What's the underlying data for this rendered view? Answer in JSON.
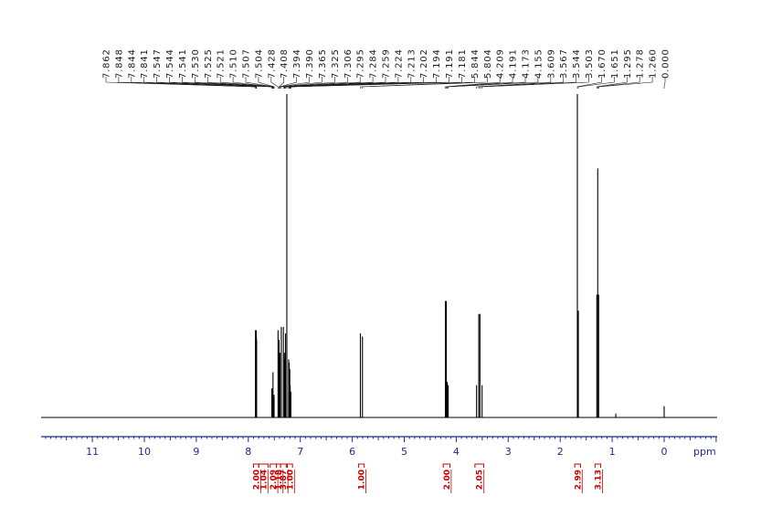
{
  "chart_data": {
    "type": "line",
    "title": "",
    "xlabel": "ppm",
    "ylabel": "",
    "xlim": [
      12.0,
      -1.0
    ],
    "reversed_x": true,
    "x_ticks": [
      "11",
      "10",
      "9",
      "8",
      "7",
      "6",
      "5",
      "4",
      "3",
      "2",
      "1",
      "0"
    ],
    "grid": false,
    "colors": {
      "spectrum": "#000000",
      "axis": "#1f2a99",
      "integral": "#cc0000",
      "peak_label": "#1a1a1a"
    },
    "peak_labels": [
      "7.862",
      "7.848",
      "7.844",
      "7.841",
      "7.547",
      "7.544",
      "7.541",
      "7.530",
      "7.525",
      "7.521",
      "7.510",
      "7.507",
      "7.504",
      "7.428",
      "7.408",
      "7.394",
      "7.390",
      "7.365",
      "7.325",
      "7.306",
      "7.295",
      "7.284",
      "7.259",
      "7.224",
      "7.213",
      "7.202",
      "7.194",
      "7.191",
      "7.181",
      "5.844",
      "5.804",
      "4.209",
      "4.191",
      "4.173",
      "4.155",
      "3.609",
      "3.567",
      "3.544",
      "3.503",
      "1.670",
      "1.651",
      "1.295",
      "1.278",
      "1.260",
      "0.000"
    ],
    "peaks": [
      {
        "x": 7.862,
        "h": 0.27
      },
      {
        "x": 7.848,
        "h": 0.27
      },
      {
        "x": 7.844,
        "h": 0.25
      },
      {
        "x": 7.841,
        "h": 0.24
      },
      {
        "x": 7.547,
        "h": 0.09
      },
      {
        "x": 7.541,
        "h": 0.09
      },
      {
        "x": 7.525,
        "h": 0.14
      },
      {
        "x": 7.51,
        "h": 0.06
      },
      {
        "x": 7.504,
        "h": 0.07
      },
      {
        "x": 7.428,
        "h": 0.27
      },
      {
        "x": 7.408,
        "h": 0.24
      },
      {
        "x": 7.394,
        "h": 0.18
      },
      {
        "x": 7.39,
        "h": 0.2
      },
      {
        "x": 7.365,
        "h": 0.28
      },
      {
        "x": 7.325,
        "h": 0.28
      },
      {
        "x": 7.306,
        "h": 0.2
      },
      {
        "x": 7.295,
        "h": 0.18
      },
      {
        "x": 7.284,
        "h": 0.26
      },
      {
        "x": 7.259,
        "h": 1.0
      },
      {
        "x": 7.224,
        "h": 0.18
      },
      {
        "x": 7.213,
        "h": 0.17
      },
      {
        "x": 7.202,
        "h": 0.15
      },
      {
        "x": 7.194,
        "h": 0.1
      },
      {
        "x": 7.181,
        "h": 0.08
      },
      {
        "x": 5.844,
        "h": 0.26
      },
      {
        "x": 5.804,
        "h": 0.25
      },
      {
        "x": 4.209,
        "h": 0.36
      },
      {
        "x": 4.191,
        "h": 0.36
      },
      {
        "x": 4.173,
        "h": 0.11
      },
      {
        "x": 4.155,
        "h": 0.1
      },
      {
        "x": 3.609,
        "h": 0.1
      },
      {
        "x": 3.567,
        "h": 0.32
      },
      {
        "x": 3.544,
        "h": 0.32
      },
      {
        "x": 3.503,
        "h": 0.1
      },
      {
        "x": 1.67,
        "h": 1.0
      },
      {
        "x": 1.651,
        "h": 0.33
      },
      {
        "x": 1.295,
        "h": 0.38
      },
      {
        "x": 1.278,
        "h": 0.77
      },
      {
        "x": 1.26,
        "h": 0.38
      },
      {
        "x": 0.93,
        "h": 0.012
      },
      {
        "x": 0.0,
        "h": 0.035
      }
    ],
    "integrals": [
      {
        "from": 7.9,
        "to": 7.8,
        "value": "2.00"
      },
      {
        "from": 7.8,
        "to": 7.62,
        "value": "1.04"
      },
      {
        "from": 7.58,
        "to": 7.46,
        "value": "2.09"
      },
      {
        "from": 7.46,
        "to": 7.38,
        "value": "1.18"
      },
      {
        "from": 7.38,
        "to": 7.27,
        "value": "3.87"
      },
      {
        "from": 7.25,
        "to": 7.15,
        "value": "1.00"
      },
      {
        "from": 5.88,
        "to": 5.77,
        "value": "1.00"
      },
      {
        "from": 4.25,
        "to": 4.12,
        "value": "2.00"
      },
      {
        "from": 3.64,
        "to": 3.47,
        "value": "2.05"
      },
      {
        "from": 1.72,
        "to": 1.61,
        "value": "2.99"
      },
      {
        "from": 1.33,
        "to": 1.22,
        "value": "3.13"
      }
    ]
  }
}
